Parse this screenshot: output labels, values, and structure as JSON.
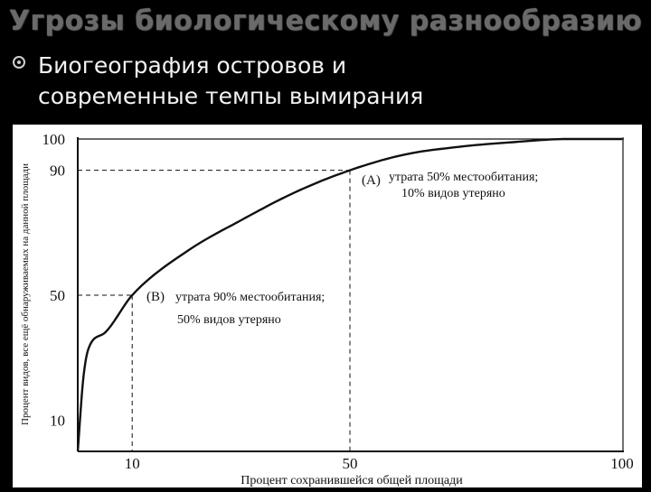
{
  "slide": {
    "title": "Угрозы биологическому разнообразию",
    "bullet_line1": "Биогеография островов и",
    "bullet_line2": "современные темпы вымирания"
  },
  "chart_data": {
    "type": "line",
    "xlabel": "Процент сохранившейся общей площади",
    "ylabel": "Процент видов, все ещё обнаруживаемых на данной площади",
    "xlim": [
      0,
      100
    ],
    "ylim": [
      0,
      100
    ],
    "x_ticks": [
      "10",
      "50",
      "100"
    ],
    "y_ticks": [
      "10",
      "50",
      "90",
      "100"
    ],
    "series": [
      {
        "x": [
          0,
          1,
          2,
          5,
          10,
          20,
          30,
          40,
          50,
          60,
          70,
          80,
          90,
          100
        ],
        "values": [
          0,
          23,
          33,
          38,
          50,
          64,
          74,
          83,
          90,
          95,
          97.5,
          99,
          100,
          100
        ]
      }
    ],
    "annotations": [
      {
        "label": "(А)",
        "line1": "утрата 50% местообитания;",
        "line2": "10% видов утеряно",
        "x": 50,
        "y": 90
      },
      {
        "label": "(В)",
        "line1": "утрата 90% местообитания;",
        "line2": "50% видов утеряно",
        "x": 10,
        "y": 50
      }
    ],
    "grid": false,
    "colors": {
      "line": "#111111",
      "background": "#ffffff",
      "slide_background": "#000000"
    }
  }
}
